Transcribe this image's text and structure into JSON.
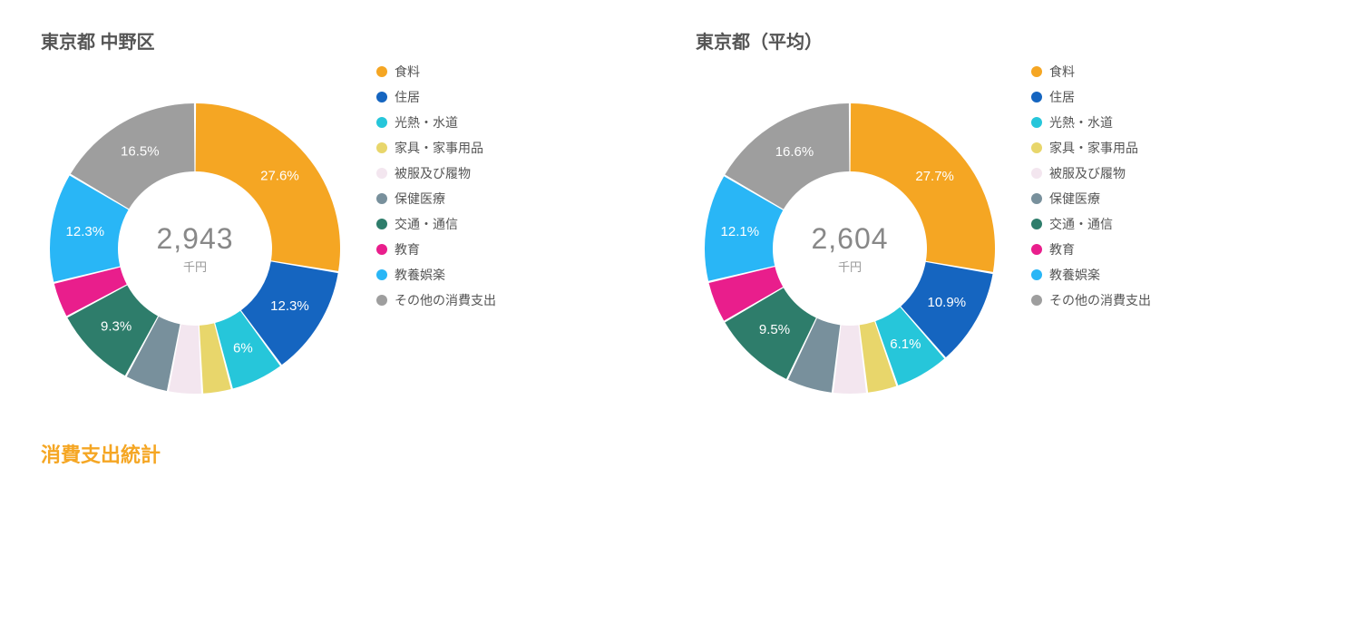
{
  "categories": [
    {
      "key": "food",
      "label": "食料",
      "color": "#f5a623"
    },
    {
      "key": "housing",
      "label": "住居",
      "color": "#1565c0"
    },
    {
      "key": "utilities",
      "label": "光熱・水道",
      "color": "#26c6da"
    },
    {
      "key": "furniture",
      "label": "家具・家事用品",
      "color": "#e8d66b"
    },
    {
      "key": "clothing",
      "label": "被服及び履物",
      "color": "#f3e6ef"
    },
    {
      "key": "medical",
      "label": "保健医療",
      "color": "#78909c"
    },
    {
      "key": "transport",
      "label": "交通・通信",
      "color": "#2e7d6b"
    },
    {
      "key": "education",
      "label": "教育",
      "color": "#e91e8c"
    },
    {
      "key": "leisure",
      "label": "教養娯楽",
      "color": "#29b6f6"
    },
    {
      "key": "other",
      "label": "その他の消費支出",
      "color": "#9e9e9e"
    }
  ],
  "charts": [
    {
      "id": "nakano",
      "title": "東京都 中野区",
      "center_value": "2,943",
      "center_unit": "千円",
      "slices": [
        {
          "value": 27.6,
          "label": "27.6%"
        },
        {
          "value": 12.3,
          "label": "12.3%"
        },
        {
          "value": 6.0,
          "label": "6%"
        },
        {
          "value": 3.3,
          "label": ""
        },
        {
          "value": 3.8,
          "label": ""
        },
        {
          "value": 4.9,
          "label": ""
        },
        {
          "value": 9.3,
          "label": "9.3%"
        },
        {
          "value": 4.0,
          "label": ""
        },
        {
          "value": 12.3,
          "label": "12.3%"
        },
        {
          "value": 16.5,
          "label": "16.5%"
        }
      ]
    },
    {
      "id": "tokyo-avg",
      "title": "東京都（平均）",
      "center_value": "2,604",
      "center_unit": "千円",
      "slices": [
        {
          "value": 27.7,
          "label": "27.7%"
        },
        {
          "value": 10.9,
          "label": "10.9%"
        },
        {
          "value": 6.1,
          "label": "6.1%"
        },
        {
          "value": 3.4,
          "label": ""
        },
        {
          "value": 3.8,
          "label": ""
        },
        {
          "value": 5.2,
          "label": ""
        },
        {
          "value": 9.5,
          "label": "9.5%"
        },
        {
          "value": 4.7,
          "label": ""
        },
        {
          "value": 12.1,
          "label": "12.1%"
        },
        {
          "value": 16.6,
          "label": "16.6%"
        }
      ]
    }
  ],
  "donut": {
    "outer_radius": 160,
    "inner_radius": 85,
    "gap_deg": 0.8,
    "start_angle_deg": -90
  },
  "section_title": "消費支出統計"
}
